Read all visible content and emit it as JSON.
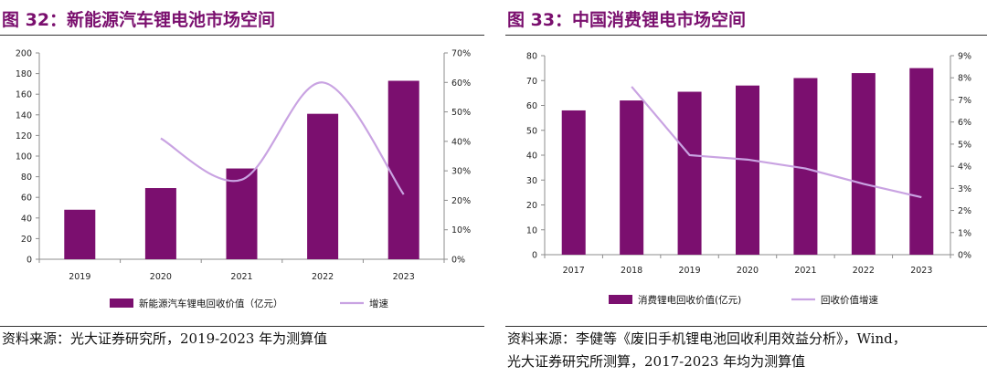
{
  "figures": [
    {
      "title": "图 32：新能源汽车锂电池市场空间",
      "source_lines": [
        "资料来源：光大证券研究所，2019-2023 年为测算值"
      ]
    },
    {
      "title": "图 33：中国消费锂电市场空间",
      "source_lines": [
        "资料来源：李健等《废旧手机锂电池回收利用效益分析》，Wind，",
        "光大证券研究所测算，2017-2023 年均为测算值"
      ]
    }
  ],
  "colors": {
    "bar": "#7b0f6f",
    "line": "#c9a3e2",
    "title": "#7a0f6e"
  },
  "chart_data": [
    {
      "type": "bar",
      "title": "新能源汽车锂电池市场空间",
      "categories": [
        "2019",
        "2020",
        "2021",
        "2022",
        "2023"
      ],
      "series": [
        {
          "name": "新能源汽车锂电回收价值（亿元）",
          "type": "bar",
          "axis": "left",
          "values": [
            48,
            69,
            88,
            141,
            173
          ]
        },
        {
          "name": "增速",
          "type": "line",
          "smooth": true,
          "axis": "right",
          "values": [
            null,
            0.41,
            0.27,
            0.6,
            0.22
          ]
        }
      ],
      "ylim": [
        0,
        200
      ],
      "yticks": [
        "0",
        "20",
        "40",
        "60",
        "80",
        "100",
        "120",
        "140",
        "160",
        "180",
        "200"
      ],
      "y2lim": [
        0,
        0.7
      ],
      "y2ticks": [
        "0%",
        "10%",
        "20%",
        "30%",
        "40%",
        "50%",
        "60%",
        "70%"
      ],
      "legend": "bottom"
    },
    {
      "type": "bar",
      "title": "中国消费锂电市场空间",
      "categories": [
        "2017",
        "2018",
        "2019",
        "2020",
        "2021",
        "2022",
        "2023"
      ],
      "series": [
        {
          "name": "消费锂电回收价值(亿元)",
          "type": "bar",
          "axis": "left",
          "values": [
            58,
            62,
            65.5,
            68,
            71,
            73,
            75
          ]
        },
        {
          "name": "回收价值增速",
          "type": "line",
          "smooth": false,
          "axis": "right",
          "values": [
            null,
            0.076,
            0.045,
            0.043,
            0.039,
            0.032,
            0.026
          ]
        }
      ],
      "ylim": [
        0,
        80
      ],
      "yticks": [
        "0",
        "10",
        "20",
        "30",
        "40",
        "50",
        "60",
        "70",
        "80"
      ],
      "y2lim": [
        0,
        0.09
      ],
      "y2ticks": [
        "0%",
        "1%",
        "2%",
        "3%",
        "4%",
        "5%",
        "6%",
        "7%",
        "8%",
        "9%"
      ],
      "legend": "bottom"
    }
  ]
}
